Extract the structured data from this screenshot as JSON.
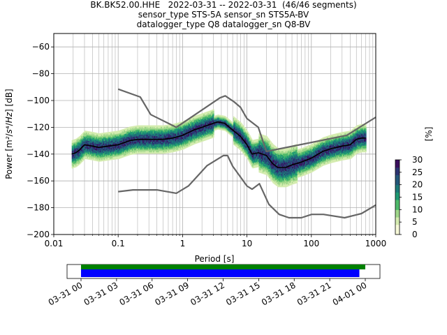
{
  "title_lines": [
    "BK.BK52.00.HHE   2022-03-31 -- 2022-03-31  (46/46 segments)",
    "sensor_type STS-5A sensor_sn STS5A-BV",
    "datalogger_type Q8 datalogger_sn Q8-BV"
  ],
  "colorbar": {
    "label": "[%]",
    "ticks": [
      0,
      5,
      10,
      15,
      20,
      25,
      30
    ],
    "range": [
      0,
      30
    ]
  },
  "chart_data": [
    {
      "type": "line",
      "title": "",
      "xlabel": "Period [s]",
      "ylabel": "Power [m²/s⁴/Hz] [dB]",
      "xscale": "log",
      "xlim": [
        0.01,
        1000
      ],
      "ylim": [
        -200,
        -50
      ],
      "xticks": [
        0.01,
        0.1,
        1,
        10,
        100,
        1000
      ],
      "xtick_labels": [
        "0.01",
        "0.1",
        "1",
        "10",
        "100",
        "1000"
      ],
      "yticks": [
        -200,
        -180,
        -160,
        -140,
        -120,
        -100,
        -80,
        -60
      ],
      "grid": true,
      "series": [
        {
          "role": "mode-curve",
          "color": "#000000",
          "x": [
            0.019,
            0.022,
            0.025,
            0.03,
            0.04,
            0.05,
            0.07,
            0.1,
            0.15,
            0.2,
            0.3,
            0.5,
            0.7,
            1.0,
            1.5,
            2.0,
            3.0,
            3.5,
            4.5,
            6.0,
            8.0,
            10.0,
            12.0,
            15.0,
            20.0,
            25.0,
            30.0,
            40.0,
            50.0,
            70.0,
            100.0,
            150.0,
            200.0,
            300.0,
            400.0,
            500.0,
            600.0,
            700.0
          ],
          "y": [
            -140,
            -139,
            -137,
            -133,
            -134,
            -135,
            -134,
            -133,
            -130,
            -129,
            -129,
            -129,
            -128,
            -126,
            -122,
            -120,
            -117,
            -116,
            -117,
            -122,
            -127,
            -133,
            -140,
            -139,
            -141,
            -147,
            -150,
            -150,
            -148,
            -146,
            -143,
            -138,
            -136,
            -134,
            -133,
            -129,
            -128,
            -128
          ]
        },
        {
          "role": "noise-model-high",
          "color": "#666666",
          "x": [
            0.1,
            0.22,
            0.32,
            0.8,
            3.8,
            4.6,
            6.3,
            7.9,
            10.0,
            15.0,
            20.0,
            354.8,
            1000.0
          ],
          "y": [
            -91.5,
            -97.4,
            -110.5,
            -120.0,
            -98.0,
            -96.5,
            -101.0,
            -105.0,
            -113.5,
            -120.0,
            -138.0,
            -126.0,
            -112.5
          ]
        },
        {
          "role": "noise-model-low",
          "color": "#666666",
          "x": [
            0.1,
            0.17,
            0.4,
            0.8,
            1.24,
            2.4,
            4.3,
            5.0,
            6.0,
            10.0,
            12.0,
            15.6,
            21.9,
            31.6,
            45.0,
            70.0,
            101.0,
            154.0,
            328.0,
            600.0,
            1000.0
          ],
          "y": [
            -168.0,
            -166.7,
            -166.7,
            -169.2,
            -163.7,
            -148.6,
            -141.1,
            -141.1,
            -149.0,
            -163.8,
            -166.2,
            -162.1,
            -177.5,
            -185.0,
            -187.5,
            -187.5,
            -185.0,
            -185.0,
            -187.5,
            -184.4,
            -178.0
          ]
        }
      ]
    },
    {
      "type": "bar",
      "title": "",
      "role": "data-availability",
      "xlim": [
        "2022-03-31 00:00",
        "2022-04-01 00:30"
      ],
      "xtick_labels": [
        "03-31 00",
        "03-31 03",
        "03-31 06",
        "03-31 09",
        "03-31 12",
        "03-31 15",
        "03-31 18",
        "03-31 21",
        "04-01 00"
      ],
      "series": [
        {
          "role": "segments-used",
          "color": "#0000ff",
          "start": "2022-03-31 00:00",
          "end": "2022-03-31 23:30"
        },
        {
          "role": "total-data",
          "color": "#008000",
          "start": "2022-03-31 00:00",
          "end": "2022-04-01 00:00"
        }
      ]
    }
  ]
}
